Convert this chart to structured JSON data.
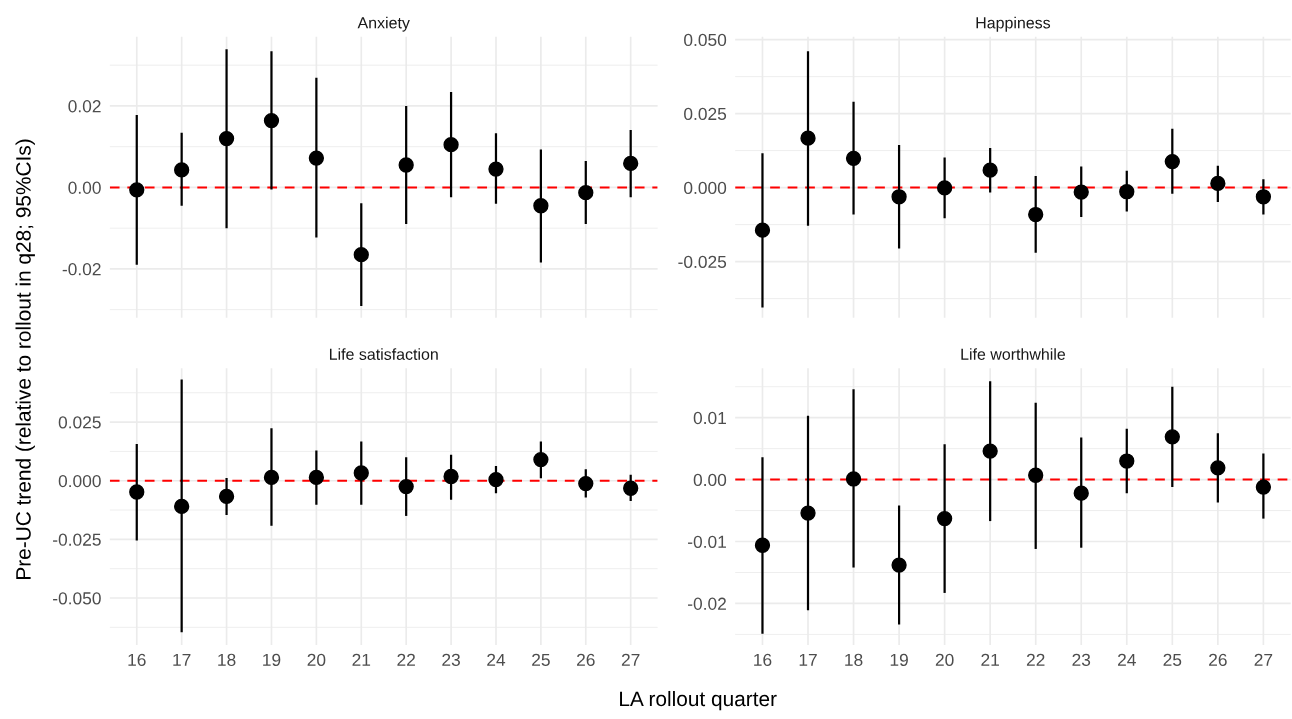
{
  "chart_data": [
    {
      "type": "scatter",
      "title": "Anxiety",
      "ylabel": "Pre-UC trend (relative to rollout in q28; 95%CIs)",
      "categories": [
        "16",
        "17",
        "18",
        "19",
        "20",
        "21",
        "22",
        "23",
        "24",
        "25",
        "26",
        "27"
      ],
      "series": [
        {
          "color": "#000000",
          "values": [
            -0.0006,
            0.0043,
            0.012,
            0.0164,
            0.0072,
            -0.0165,
            0.0055,
            0.0105,
            0.0045,
            -0.0045,
            -0.0013,
            0.0059
          ],
          "errors": [
            [
              -0.019,
              0.0178
            ],
            [
              -0.0045,
              0.0134
            ],
            [
              -0.01,
              0.0339
            ],
            [
              -0.0005,
              0.0334
            ],
            [
              -0.0123,
              0.0269
            ],
            [
              -0.0291,
              -0.0039
            ],
            [
              -0.009,
              0.02
            ],
            [
              -0.0024,
              0.0234
            ],
            [
              -0.004,
              0.0133
            ],
            [
              -0.0184,
              0.0093
            ],
            [
              -0.009,
              0.0065
            ],
            [
              -0.0024,
              0.0141
            ]
          ]
        }
      ],
      "ylim": [
        -0.032,
        0.037
      ],
      "yticks": [
        {
          "value": -0.02,
          "label": "-0.02"
        },
        {
          "value": 0,
          "label": "0.00"
        },
        {
          "value": 0.02,
          "label": "0.02"
        }
      ],
      "ref_lines": [
        {
          "axis": "y",
          "value": 0,
          "color": "#ff0000",
          "line_style": "dashed"
        }
      ],
      "grid": true,
      "marker": "circle",
      "tick_labels": "y"
    },
    {
      "type": "scatter",
      "title": "Happiness",
      "categories": [
        "16",
        "17",
        "18",
        "19",
        "20",
        "21",
        "22",
        "23",
        "24",
        "25",
        "26",
        "27"
      ],
      "series": [
        {
          "color": "#000000",
          "values": [
            -0.0144,
            0.0167,
            0.0099,
            -0.0031,
            -0.0001,
            0.0059,
            -0.0091,
            -0.0015,
            -0.0014,
            0.0088,
            0.0014,
            -0.0031
          ],
          "errors": [
            [
              -0.0405,
              0.0116
            ],
            [
              -0.0129,
              0.0461
            ],
            [
              -0.0091,
              0.029
            ],
            [
              -0.0206,
              0.0144
            ],
            [
              -0.0104,
              0.0102
            ],
            [
              -0.0017,
              0.0134
            ],
            [
              -0.022,
              0.0039
            ],
            [
              -0.0099,
              0.0071
            ],
            [
              -0.0081,
              0.0057
            ],
            [
              -0.0021,
              0.0199
            ],
            [
              -0.0049,
              0.0074
            ],
            [
              -0.0091,
              0.0028
            ]
          ]
        }
      ],
      "ylim": [
        -0.044,
        0.051
      ],
      "yticks": [
        {
          "value": -0.025,
          "label": "-0.025"
        },
        {
          "value": 0,
          "label": "0.000"
        },
        {
          "value": 0.025,
          "label": "0.025"
        },
        {
          "value": 0.05,
          "label": "0.050"
        }
      ],
      "ref_lines": [
        {
          "axis": "y",
          "value": 0,
          "color": "#ff0000",
          "line_style": "dashed"
        }
      ],
      "grid": true,
      "marker": "circle",
      "tick_labels": "y"
    },
    {
      "type": "scatter",
      "title": "Life satisfaction",
      "xlabel": "LA rollout quarter",
      "categories": [
        "16",
        "17",
        "18",
        "19",
        "20",
        "21",
        "22",
        "23",
        "24",
        "25",
        "26",
        "27"
      ],
      "series": [
        {
          "color": "#000000",
          "values": [
            -0.0048,
            -0.0109,
            -0.0067,
            0.0014,
            0.0014,
            0.0033,
            -0.0025,
            0.0018,
            0.0005,
            0.009,
            -0.0012,
            -0.0032
          ],
          "errors": [
            [
              -0.0255,
              0.0157
            ],
            [
              -0.0646,
              0.0431
            ],
            [
              -0.0146,
              0.0012
            ],
            [
              -0.0192,
              0.0224
            ],
            [
              -0.0102,
              0.0129
            ],
            [
              -0.0102,
              0.0167
            ],
            [
              -0.015,
              0.01
            ],
            [
              -0.0081,
              0.0111
            ],
            [
              -0.0053,
              0.0063
            ],
            [
              0.0011,
              0.0167
            ],
            [
              -0.0072,
              0.0049
            ],
            [
              -0.0086,
              0.0026
            ]
          ]
        }
      ],
      "ylim": [
        -0.07,
        0.048
      ],
      "yticks": [
        {
          "value": -0.05,
          "label": "-0.050"
        },
        {
          "value": -0.025,
          "label": "-0.025"
        },
        {
          "value": 0,
          "label": "0.000"
        },
        {
          "value": 0.025,
          "label": "0.025"
        }
      ],
      "ref_lines": [
        {
          "axis": "y",
          "value": 0,
          "color": "#ff0000",
          "line_style": "dashed"
        }
      ],
      "grid": true,
      "marker": "circle"
    },
    {
      "type": "scatter",
      "title": "Life worthwhile",
      "categories": [
        "16",
        "17",
        "18",
        "19",
        "20",
        "21",
        "22",
        "23",
        "24",
        "25",
        "26",
        "27"
      ],
      "series": [
        {
          "color": "#000000",
          "values": [
            -0.0106,
            -0.0054,
            0.0001,
            -0.0138,
            -0.0063,
            0.0046,
            0.0007,
            -0.0022,
            0.003,
            0.0069,
            0.0019,
            -0.0012
          ],
          "errors": [
            [
              -0.0249,
              0.0036
            ],
            [
              -0.0211,
              0.0103
            ],
            [
              -0.0142,
              0.0146
            ],
            [
              -0.0234,
              -0.0042
            ],
            [
              -0.0183,
              0.0057
            ],
            [
              -0.0067,
              0.0159
            ],
            [
              -0.0112,
              0.0124
            ],
            [
              -0.011,
              0.0068
            ],
            [
              -0.0022,
              0.0082
            ],
            [
              -0.0012,
              0.015
            ],
            [
              -0.0037,
              0.0075
            ],
            [
              -0.0063,
              0.0042
            ]
          ]
        }
      ],
      "ylim": [
        -0.0267,
        0.018
      ],
      "yticks": [
        {
          "value": -0.02,
          "label": "-0.02"
        },
        {
          "value": -0.01,
          "label": "-0.01"
        },
        {
          "value": 0,
          "label": "0.00"
        },
        {
          "value": 0.01,
          "label": "0.01"
        }
      ],
      "ref_lines": [
        {
          "axis": "y",
          "value": 0,
          "color": "#ff0000",
          "line_style": "dashed"
        }
      ],
      "grid": true,
      "marker": "circle"
    }
  ]
}
